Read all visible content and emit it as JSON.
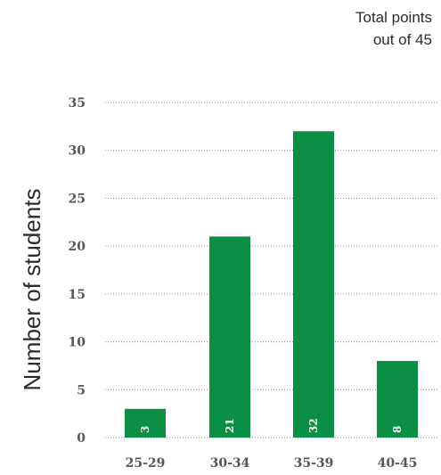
{
  "chart_data": {
    "type": "bar",
    "title": "",
    "annotation": [
      "Total points",
      "out of 45"
    ],
    "xlabel": "",
    "ylabel": "Number of students",
    "categories": [
      "25-29",
      "30-34",
      "35-39",
      "40-45"
    ],
    "values": [
      3,
      21,
      32,
      8
    ],
    "data_labels": [
      "3",
      "21",
      "32",
      "8"
    ],
    "yticks": [
      0,
      5,
      10,
      15,
      20,
      25,
      30,
      35
    ],
    "ylim": [
      0,
      35
    ],
    "grid": "horizontal dotted",
    "bar_color": "#0a8f44",
    "label_color": "#ffffff",
    "grid_color": "#8c8c8c"
  }
}
